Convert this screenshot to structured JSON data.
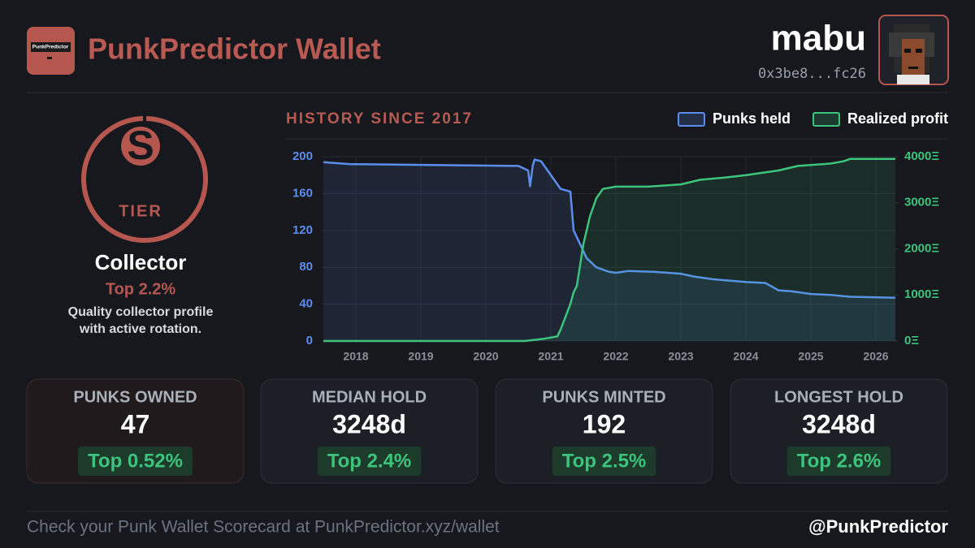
{
  "header": {
    "logo_text": "PunkPredictor",
    "title": "PunkPredictor Wallet",
    "username": "mabu",
    "address": "0x3be8...fc26"
  },
  "tier": {
    "letter": "S",
    "label": "TIER",
    "name": "Collector",
    "rank": "Top 2.2%",
    "description": [
      "Quality collector profile",
      "with active rotation."
    ]
  },
  "chart_data": {
    "type": "line",
    "title": "HISTORY SINCE 2017",
    "xlim": [
      2017.475,
      2026.3
    ],
    "xticks": [
      2018,
      2019,
      2020,
      2021,
      2022,
      2023,
      2024,
      2025,
      2026
    ],
    "ylim": [
      0,
      200
    ],
    "yticks": [
      0,
      40,
      80,
      120,
      160,
      200
    ],
    "y2lim": [
      0,
      4000
    ],
    "y2ticks": [
      {
        "value": 0,
        "label": "0Ξ"
      },
      {
        "value": 1000,
        "label": "1000Ξ"
      },
      {
        "value": 2000,
        "label": "2000Ξ"
      },
      {
        "value": 3000,
        "label": "3000Ξ"
      },
      {
        "value": 4000,
        "label": "4000Ξ"
      }
    ],
    "grid": true,
    "legend": "top-right",
    "series": [
      {
        "name": "Punks held",
        "color": "#5b8def",
        "x": [
          2017.5,
          2017.9,
          2020.5,
          2020.65,
          2020.68,
          2020.72,
          2020.75,
          2020.85,
          2020.95,
          2021.05,
          2021.15,
          2021.3,
          2021.35,
          2021.45,
          2021.55,
          2021.7,
          2021.9,
          2022.0,
          2022.2,
          2022.6,
          2023.0,
          2023.2,
          2023.5,
          2024.0,
          2024.3,
          2024.5,
          2024.7,
          2025.0,
          2025.3,
          2025.6,
          2026.3
        ],
        "values": [
          194,
          192,
          190,
          185,
          168,
          190,
          197,
          195,
          185,
          175,
          165,
          162,
          120,
          105,
          90,
          80,
          75,
          74,
          76,
          75,
          73,
          70,
          67,
          64,
          63,
          55,
          54,
          51,
          50,
          48,
          47
        ]
      },
      {
        "name": "Realized profit",
        "color": "#3cc47c",
        "axis": "y2",
        "x": [
          2017.5,
          2020.6,
          2020.9,
          2021.1,
          2021.15,
          2021.3,
          2021.35,
          2021.4,
          2021.5,
          2021.6,
          2021.7,
          2021.8,
          2022.0,
          2022.5,
          2023.0,
          2023.3,
          2023.7,
          2024.0,
          2024.5,
          2024.8,
          2025.3,
          2025.5,
          2025.6,
          2026.3
        ],
        "values": [
          0,
          0,
          50,
          100,
          250,
          800,
          1057,
          1200,
          2100,
          2700,
          3100,
          3300,
          3350,
          3350,
          3400,
          3500,
          3550,
          3600,
          3700,
          3800,
          3850,
          3900,
          3950,
          3950
        ]
      }
    ]
  },
  "stats": [
    {
      "label": "PUNKS OWNED",
      "value": 47,
      "rank": "Top 0.52%"
    },
    {
      "label": "MEDIAN HOLD",
      "value": "3248d",
      "rank": "Top 2.4%"
    },
    {
      "label": "PUNKS MINTED",
      "value": 192,
      "rank": "Top 2.5%"
    },
    {
      "label": "LONGEST HOLD",
      "value": "3248d",
      "rank": "Top 2.6%"
    }
  ],
  "footer": {
    "text": "Check your Punk Wallet Scorecard at PunkPredictor.xyz/wallet",
    "handle": "@PunkPredictor"
  }
}
